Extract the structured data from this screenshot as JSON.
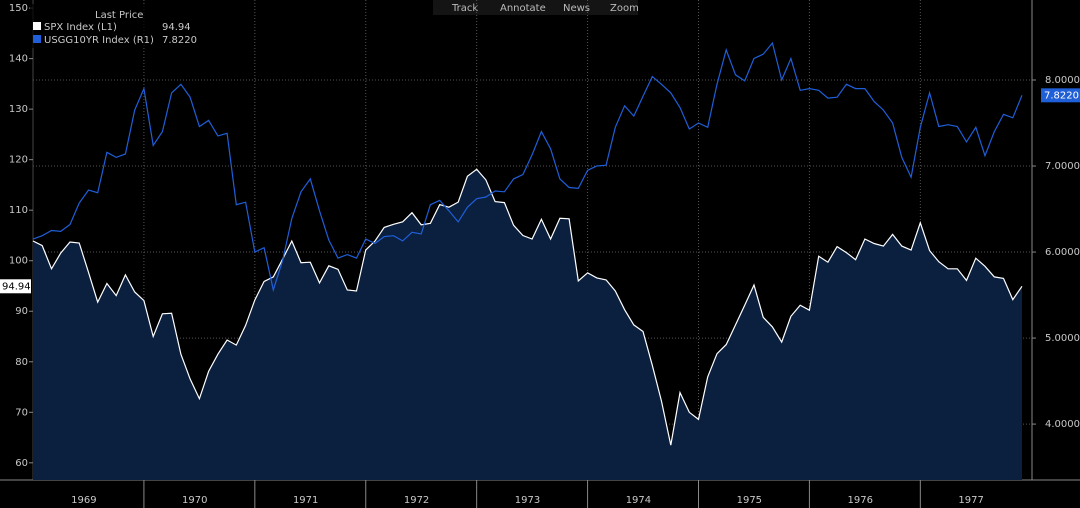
{
  "toolbar": [
    "Track",
    "Annotate",
    "News",
    "Zoom"
  ],
  "chart_data": {
    "type": "line",
    "legend_title": "Last Price",
    "categories": [
      null,
      null,
      null,
      null,
      null,
      null,
      "1969",
      null,
      null,
      null,
      null,
      null,
      null,
      null,
      null,
      null,
      null,
      null,
      "1970",
      null,
      null,
      null,
      null,
      null,
      null,
      null,
      null,
      null,
      null,
      null,
      "1971",
      null,
      null,
      null,
      null,
      null,
      null,
      null,
      null,
      null,
      null,
      null,
      "1972",
      null,
      null,
      null,
      null,
      null,
      null,
      null,
      null,
      null,
      null,
      null,
      "1973",
      null,
      null,
      null,
      null,
      null,
      null,
      null,
      null,
      null,
      null,
      null,
      "1974",
      null,
      null,
      null,
      null,
      null,
      null,
      null,
      null,
      null,
      null,
      null,
      "1975",
      null,
      null,
      null,
      null,
      null,
      null,
      null,
      null,
      null,
      null,
      null,
      "1976",
      null,
      null,
      null,
      null,
      null,
      null,
      null,
      null,
      null,
      null,
      null,
      "1977",
      null,
      null,
      null,
      null,
      null
    ],
    "series": [
      {
        "name": "SPX Index (L1)",
        "legend_value": "94.94",
        "color": "#ffffff",
        "fill": "#0b1f3f",
        "axis": "y",
        "values": [
          103.9,
          103.0,
          98.4,
          101.5,
          103.7,
          103.5,
          97.7,
          91.8,
          95.5,
          93.1,
          97.2,
          93.8,
          92.1,
          85.0,
          89.5,
          89.6,
          81.5,
          76.6,
          72.7,
          78.1,
          81.5,
          84.3,
          83.3,
          87.2,
          92.2,
          95.9,
          96.8,
          100.3,
          103.9,
          99.6,
          99.7,
          95.6,
          99.0,
          98.3,
          94.2,
          94.0,
          102.1,
          103.9,
          106.6,
          107.2,
          107.7,
          109.5,
          107.1,
          107.4,
          111.1,
          110.6,
          111.6,
          116.7,
          118.1,
          116.0,
          111.7,
          111.5,
          107.0,
          105.0,
          104.3,
          108.2,
          104.3,
          108.4,
          108.3,
          96.0,
          97.6,
          96.6,
          96.2,
          94.0,
          90.3,
          87.3,
          86.0,
          79.3,
          72.2,
          63.5,
          73.9,
          70.0,
          68.6,
          77.0,
          81.6,
          83.4,
          87.3,
          91.2,
          95.2,
          88.8,
          86.9,
          83.9,
          89.0,
          91.2,
          90.2,
          100.9,
          99.7,
          102.8,
          101.6,
          100.2,
          104.3,
          103.4,
          102.9,
          105.2,
          102.9,
          102.1,
          107.5,
          102.0,
          99.8,
          98.4,
          98.4,
          96.1,
          100.5,
          98.9,
          96.8,
          96.5,
          92.3,
          94.94
        ]
      },
      {
        "name": "USGG10YR Index (R1)",
        "legend_value": "7.8220",
        "color": "#1f5fd8",
        "axis": "y2",
        "values": [
          6.15,
          6.19,
          6.25,
          6.24,
          6.32,
          6.57,
          6.72,
          6.69,
          7.16,
          7.1,
          7.14,
          7.65,
          7.9,
          7.24,
          7.4,
          7.85,
          7.95,
          7.8,
          7.46,
          7.53,
          7.35,
          7.38,
          6.55,
          6.58,
          6.0,
          6.05,
          5.56,
          5.9,
          6.39,
          6.7,
          6.85,
          6.48,
          6.14,
          5.93,
          5.97,
          5.93,
          6.15,
          6.1,
          6.18,
          6.19,
          6.13,
          6.23,
          6.21,
          6.55,
          6.6,
          6.48,
          6.35,
          6.52,
          6.62,
          6.64,
          6.71,
          6.7,
          6.85,
          6.9,
          7.13,
          7.4,
          7.2,
          6.85,
          6.75,
          6.74,
          6.95,
          7.0,
          7.01,
          7.45,
          7.7,
          7.58,
          7.81,
          8.04,
          7.95,
          7.85,
          7.68,
          7.43,
          7.5,
          7.45,
          7.95,
          8.35,
          8.06,
          7.99,
          8.25,
          8.3,
          8.43,
          8.0,
          8.25,
          7.88,
          7.9,
          7.88,
          7.79,
          7.8,
          7.95,
          7.9,
          7.9,
          7.75,
          7.65,
          7.5,
          7.1,
          6.87,
          7.45,
          7.85,
          7.46,
          7.48,
          7.46,
          7.28,
          7.45,
          7.12,
          7.4,
          7.6,
          7.56,
          7.822
        ]
      }
    ],
    "ylim": [
      56.6,
      151.6
    ],
    "yticks": [
      60,
      70,
      80,
      90,
      100,
      110,
      120,
      130,
      140,
      150
    ],
    "y2lim": [
      3.35,
      8.93
    ],
    "y2ticks": [
      {
        "value": 4,
        "label": "4.0000"
      },
      {
        "value": 5,
        "label": "5.0000"
      },
      {
        "value": 6,
        "label": "6.0000"
      },
      {
        "value": 7,
        "label": "7.0000"
      },
      {
        "value": 8,
        "label": "8.0000"
      }
    ],
    "grid": true
  }
}
